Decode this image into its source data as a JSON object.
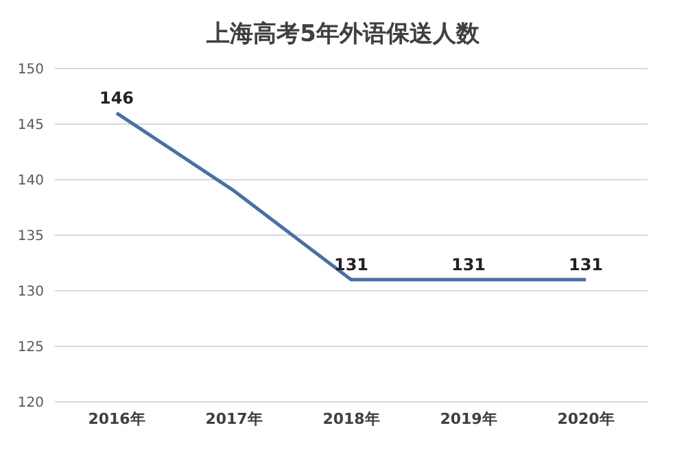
{
  "chart_data": {
    "type": "line",
    "title": "上海高考5年外语保送人数",
    "categories": [
      "2016年",
      "2017年",
      "2018年",
      "2019年",
      "2020年"
    ],
    "series": [
      {
        "color": "#4a6fa5",
        "values": [
          146,
          139,
          131,
          131,
          131
        ],
        "value_labels": [
          "146",
          null,
          "131",
          "131",
          "131"
        ]
      }
    ],
    "ylim": [
      120,
      150
    ],
    "yticks": [
      120,
      125,
      130,
      135,
      140,
      145,
      150
    ],
    "grid": "y",
    "marker": "none"
  }
}
